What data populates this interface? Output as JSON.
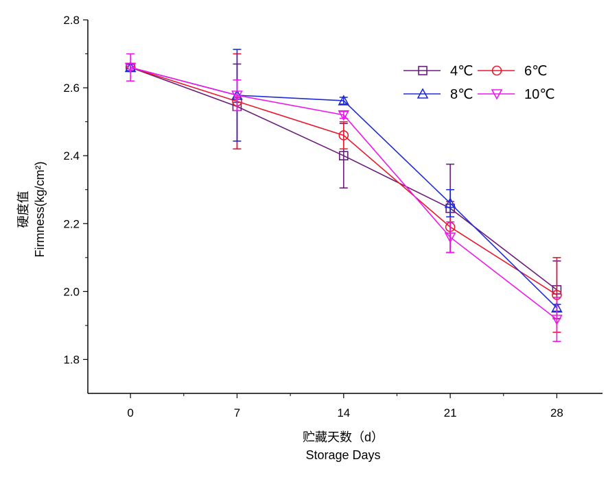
{
  "chart_data": {
    "type": "line",
    "xlabel_lines": [
      "贮藏天数（d）",
      "Storage Days"
    ],
    "ylabel_lines": [
      "硬度值",
      "Firmness(kg/cm²)"
    ],
    "x": [
      0,
      7,
      14,
      21,
      28
    ],
    "x_tick_labels": [
      "0",
      "7",
      "14",
      "21",
      "28"
    ],
    "xlim": [
      -2.8,
      31.0
    ],
    "ylim": [
      1.7,
      2.8
    ],
    "y_ticks": [
      1.8,
      2.0,
      2.2,
      2.4,
      2.6,
      2.8
    ],
    "y_tick_labels": [
      "1.8",
      "2.0",
      "2.2",
      "2.4",
      "2.6",
      "2.8"
    ],
    "legend_position": "top-right",
    "grid": false,
    "series": [
      {
        "name": "4℃",
        "color": "#6a1b7a",
        "marker": "square",
        "values": [
          2.66,
          2.545,
          2.4,
          2.245,
          2.005
        ],
        "error": [
          0.01,
          0.125,
          0.095,
          0.13,
          0.085
        ]
      },
      {
        "name": "6℃",
        "color": "#e8192c",
        "marker": "circle",
        "values": [
          2.66,
          2.56,
          2.46,
          2.19,
          1.99
        ],
        "error": [
          0.01,
          0.14,
          0.04,
          0.075,
          0.11
        ]
      },
      {
        "name": "8℃",
        "color": "#1f2bd6",
        "marker": "triangle-up",
        "values": [
          2.66,
          2.578,
          2.562,
          2.26,
          1.952
        ],
        "error": [
          0.01,
          0.135,
          0.01,
          0.04,
          0.01
        ]
      },
      {
        "name": "10℃",
        "color": "#ee16ee",
        "marker": "triangle-down",
        "values": [
          2.66,
          2.578,
          2.52,
          2.16,
          1.918
        ],
        "error": [
          0.04,
          0.045,
          0.01,
          0.045,
          0.065
        ]
      }
    ]
  }
}
